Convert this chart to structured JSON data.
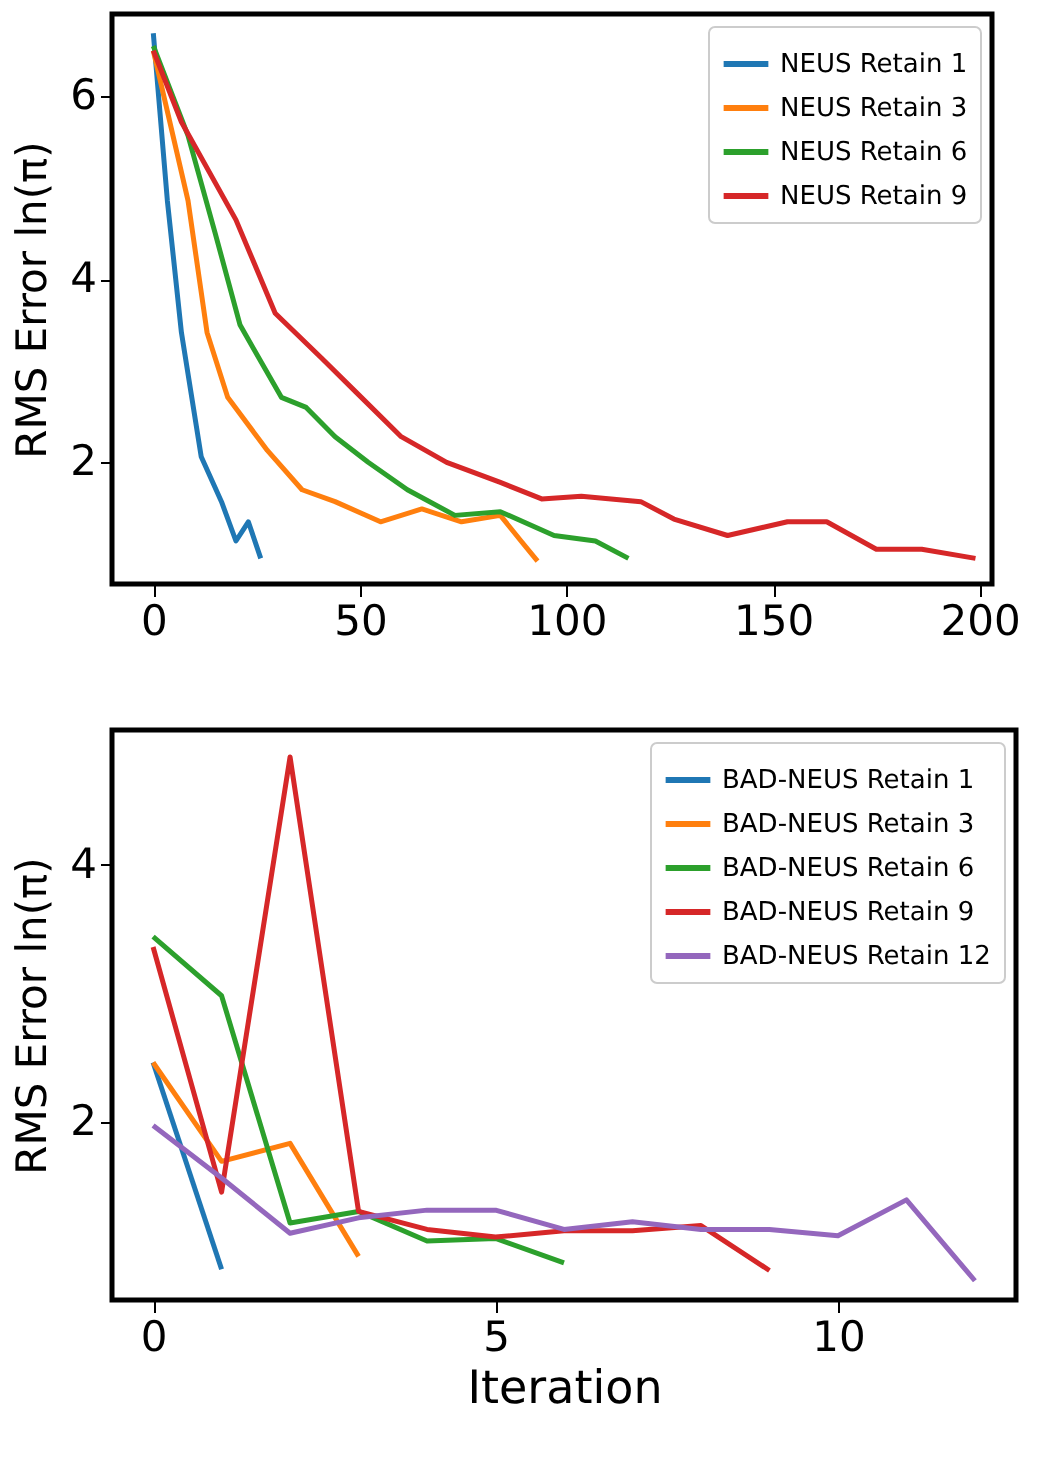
{
  "chart_data": [
    {
      "type": "line",
      "ylabel": "RMS Error ln(π)",
      "xlim": [
        -10,
        203
      ],
      "xticks": [
        0,
        50,
        100,
        150,
        200
      ],
      "ylim": [
        0.67,
        6.9
      ],
      "yticks": [
        2,
        4,
        6
      ],
      "grid": false,
      "legend": "top right",
      "line_style": "solid",
      "marker": "none",
      "series": [
        {
          "name": "NEUS Retain 1",
          "color": "#1f77b4",
          "x": [
            0,
            3.4,
            6.8,
            11.6,
            16.5,
            20,
            23,
            26
          ],
          "values": [
            6.69,
            4.86,
            3.42,
            2.06,
            1.57,
            1.14,
            1.35,
            0.95
          ]
        },
        {
          "name": "NEUS Retain 3",
          "color": "#ff7f0e",
          "x": [
            0,
            8.4,
            13,
            18,
            27.6,
            36,
            44,
            55,
            65,
            74.6,
            84,
            89,
            93
          ],
          "values": [
            6.5,
            4.86,
            3.42,
            2.71,
            2.13,
            1.7,
            1.57,
            1.35,
            1.49,
            1.35,
            1.42,
            1.14,
            0.92
          ]
        },
        {
          "name": "NEUS Retain 6",
          "color": "#2ca02c",
          "x": [
            0,
            8.4,
            15,
            21,
            31,
            37,
            44,
            52,
            61.5,
            73,
            84,
            97,
            107,
            115
          ],
          "values": [
            6.55,
            5.57,
            4.5,
            3.5,
            2.71,
            2.6,
            2.28,
            2.0,
            1.7,
            1.42,
            1.46,
            1.2,
            1.14,
            0.95
          ]
        },
        {
          "name": "NEUS Retain 9",
          "color": "#d62728",
          "x": [
            0,
            6.8,
            20,
            29.5,
            40.7,
            49,
            60,
            71,
            84,
            94,
            103.6,
            118,
            126,
            139,
            153.5,
            163,
            175,
            186,
            199
          ],
          "values": [
            6.5,
            5.72,
            4.65,
            3.63,
            3.14,
            2.77,
            2.28,
            2.0,
            1.78,
            1.6,
            1.63,
            1.57,
            1.38,
            1.2,
            1.35,
            1.35,
            1.05,
            1.05,
            0.95
          ]
        }
      ]
    },
    {
      "type": "line",
      "xlabel": "Iteration",
      "ylabel": "RMS Error ln(π)",
      "xlim": [
        -0.6,
        12.6
      ],
      "xticks": [
        0,
        5,
        10
      ],
      "ylim": [
        0.61,
        5.05
      ],
      "yticks": [
        2,
        4
      ],
      "grid": false,
      "legend": "top right",
      "line_style": "solid",
      "marker": "none",
      "series": [
        {
          "name": "BAD-NEUS Retain 1",
          "color": "#1f77b4",
          "x": [
            0,
            1
          ],
          "values": [
            2.46,
            0.85
          ]
        },
        {
          "name": "BAD-NEUS Retain 3",
          "color": "#ff7f0e",
          "x": [
            0,
            1,
            2,
            3
          ],
          "values": [
            2.46,
            1.69,
            1.83,
            0.95
          ]
        },
        {
          "name": "BAD-NEUS Retain 6",
          "color": "#2ca02c",
          "x": [
            0,
            1,
            2,
            3,
            4,
            5,
            6
          ],
          "values": [
            3.44,
            2.98,
            1.21,
            1.3,
            1.07,
            1.09,
            0.9
          ]
        },
        {
          "name": "BAD-NEUS Retain 9",
          "color": "#d62728",
          "x": [
            0,
            1,
            2,
            3,
            4,
            5,
            6,
            7,
            8,
            9
          ],
          "values": [
            3.36,
            1.45,
            4.84,
            1.3,
            1.16,
            1.1,
            1.15,
            1.15,
            1.19,
            0.84
          ]
        },
        {
          "name": "BAD-NEUS Retain 12",
          "color": "#9467bd",
          "x": [
            0,
            1,
            2,
            3,
            4,
            5,
            6,
            7,
            8,
            9,
            10,
            11,
            12
          ],
          "values": [
            1.97,
            1.56,
            1.13,
            1.25,
            1.31,
            1.31,
            1.16,
            1.22,
            1.16,
            1.16,
            1.11,
            1.39,
            0.76
          ]
        }
      ]
    }
  ]
}
